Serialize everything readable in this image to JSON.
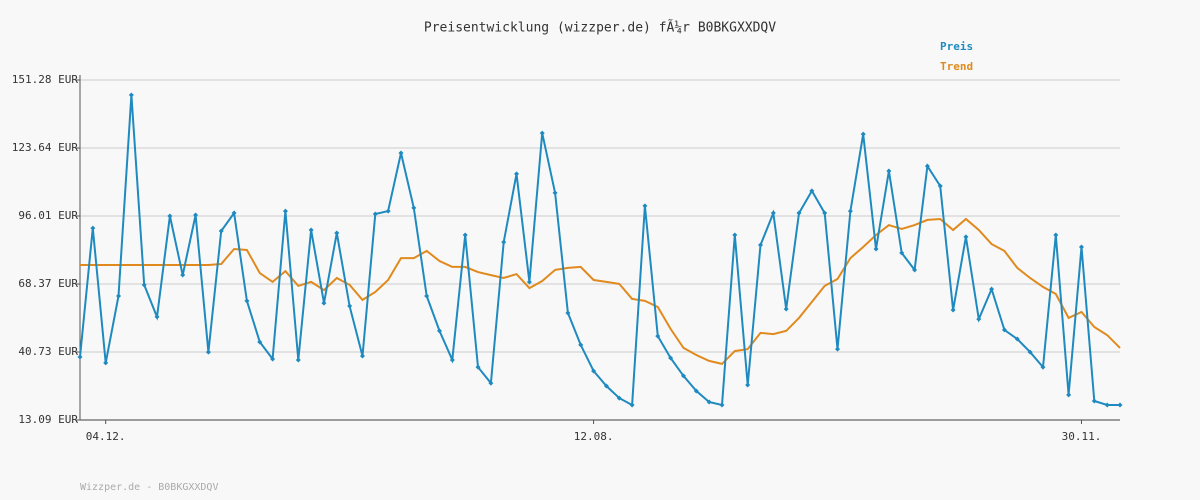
{
  "chart_data": {
    "type": "line",
    "title": "Preisentwicklung (wizzper.de) fÃ¼r B0BKGXXDQV",
    "footer": "Wizzper.de - B0BKGXXDQV",
    "categories": [
      null,
      null,
      "04.12.",
      null,
      null,
      null,
      null,
      null,
      null,
      null,
      null,
      null,
      null,
      null,
      null,
      null,
      null,
      null,
      null,
      null,
      null,
      null,
      null,
      null,
      null,
      null,
      null,
      null,
      null,
      null,
      null,
      null,
      null,
      null,
      null,
      null,
      null,
      null,
      null,
      null,
      "12.08.",
      null,
      null,
      null,
      null,
      null,
      null,
      null,
      null,
      null,
      null,
      null,
      null,
      null,
      null,
      null,
      null,
      null,
      null,
      null,
      null,
      null,
      null,
      null,
      null,
      null,
      null,
      null,
      null,
      null,
      null,
      null,
      null,
      null,
      null,
      null,
      null,
      null,
      "30.11.",
      null,
      null,
      null
    ],
    "series": [
      {
        "name": "Preis",
        "color": "#1f8ac0",
        "markers": true,
        "values": [
          38.7,
          91.1,
          36.3,
          63.5,
          145.2,
          68.0,
          55.0,
          96.0,
          72.0,
          96.4,
          40.7,
          89.9,
          97.2,
          61.5,
          44.8,
          37.9,
          98.0,
          37.5,
          90.3,
          60.6,
          89.1,
          59.4,
          39.1,
          96.8,
          98.0,
          121.6,
          99.3,
          63.5,
          49.3,
          37.5,
          88.3,
          34.6,
          28.1,
          85.4,
          113.1,
          69.2,
          129.7,
          105.4,
          56.6,
          43.6,
          33.0,
          26.9,
          22.0,
          19.2,
          100.1,
          47.2,
          38.3,
          31.0,
          24.9,
          20.4,
          19.2,
          88.3,
          27.3,
          84.2,
          97.2,
          58.2,
          97.2,
          106.2,
          97.2,
          41.9,
          98.0,
          129.3,
          82.6,
          114.3,
          81.0,
          74.1,
          116.3,
          108.2,
          57.8,
          87.5,
          54.1,
          66.3,
          49.7,
          46.0,
          40.7,
          34.6,
          88.3,
          23.3,
          83.4,
          20.8,
          19.2,
          19.2
        ]
      },
      {
        "name": "Trend",
        "color": "#e08a1e",
        "markers": false,
        "values": [
          76.1,
          76.1,
          76.1,
          76.1,
          76.1,
          76.1,
          76.1,
          76.1,
          76.1,
          76.1,
          76.1,
          76.5,
          82.6,
          82.2,
          72.8,
          69.2,
          73.6,
          67.6,
          69.2,
          65.9,
          70.8,
          68.0,
          61.9,
          65.1,
          70.0,
          78.9,
          78.9,
          81.8,
          77.7,
          75.3,
          75.3,
          73.2,
          72.0,
          70.8,
          72.4,
          66.7,
          69.6,
          74.1,
          74.9,
          75.3,
          70.0,
          69.2,
          68.4,
          62.3,
          61.5,
          59.0,
          50.1,
          42.4,
          39.5,
          37.1,
          35.9,
          41.1,
          41.9,
          48.5,
          48.0,
          49.3,
          54.6,
          61.1,
          67.6,
          70.4,
          78.9,
          83.4,
          88.3,
          92.3,
          90.7,
          92.3,
          94.4,
          94.8,
          90.3,
          94.8,
          90.3,
          84.6,
          81.8,
          74.9,
          70.8,
          67.2,
          64.3,
          54.6,
          57.0,
          50.9,
          47.6,
          42.4
        ]
      }
    ],
    "ylim": [
      13.09,
      151.28
    ],
    "yticks": [
      {
        "value": 13.09,
        "label": "13.09 EUR"
      },
      {
        "value": 40.73,
        "label": "40.73 EUR"
      },
      {
        "value": 68.37,
        "label": "68.37 EUR"
      },
      {
        "value": 96.01,
        "label": "96.01 EUR"
      },
      {
        "value": 123.64,
        "label": "123.64 EUR"
      },
      {
        "value": 151.28,
        "label": "151.28 EUR"
      }
    ],
    "grid": true,
    "legend": "top-right"
  }
}
